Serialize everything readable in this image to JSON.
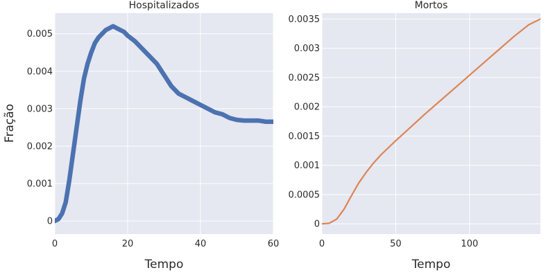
{
  "chart_data": [
    {
      "type": "line",
      "title": "Hospitalizados",
      "xlabel": "Tempo",
      "ylabel": "Fração",
      "xlim": [
        0,
        60
      ],
      "ylim": [
        -0.00035,
        0.00555
      ],
      "xticks": [
        0,
        20,
        40,
        60
      ],
      "xtick_labels": [
        "0",
        "20",
        "40",
        "60"
      ],
      "yticks": [
        0,
        0.001,
        0.002,
        0.003,
        0.004,
        0.005
      ],
      "ytick_labels": [
        "0",
        "0.001",
        "0.002",
        "0.003",
        "0.004",
        "0.005"
      ],
      "grid": true,
      "color": "#4c72b0",
      "series": [
        {
          "x": [
            0,
            1,
            2,
            3,
            4,
            5,
            6,
            7,
            8,
            9,
            10,
            11,
            12,
            13,
            14,
            15,
            16,
            17,
            18,
            19,
            20,
            22,
            24,
            26,
            28,
            30,
            32,
            34,
            36,
            38,
            40,
            42,
            44,
            46,
            48,
            50,
            52,
            54,
            56,
            58,
            60
          ],
          "y": [
            0.0,
            5e-05,
            0.0002,
            0.0005,
            0.0011,
            0.0018,
            0.0025,
            0.0032,
            0.0038,
            0.0042,
            0.0045,
            0.00475,
            0.0049,
            0.005,
            0.0051,
            0.00515,
            0.0052,
            0.00515,
            0.0051,
            0.00505,
            0.00495,
            0.0048,
            0.0046,
            0.0044,
            0.0042,
            0.0039,
            0.0036,
            0.0034,
            0.0033,
            0.0032,
            0.0031,
            0.003,
            0.0029,
            0.00285,
            0.00275,
            0.0027,
            0.00268,
            0.00268,
            0.00268,
            0.00265,
            0.00265
          ]
        }
      ]
    },
    {
      "type": "line",
      "title": "Mortos",
      "xlabel": "Tempo",
      "ylabel": "",
      "xlim": [
        0,
        148
      ],
      "ylim": [
        -0.000175,
        0.0036
      ],
      "xticks": [
        0,
        50,
        100
      ],
      "xtick_labels": [
        "0",
        "50",
        "100"
      ],
      "yticks": [
        0,
        0.0005,
        0.001,
        0.0015,
        0.002,
        0.0025,
        0.003,
        0.0035
      ],
      "ytick_labels": [
        "0",
        "0.0005",
        "0.001",
        "0.0015",
        "0.002",
        "0.0025",
        "0.003",
        "0.0035"
      ],
      "grid": true,
      "color": "#dd8452",
      "series": [
        {
          "x": [
            0,
            5,
            10,
            15,
            20,
            25,
            30,
            35,
            40,
            45,
            50,
            60,
            70,
            80,
            90,
            100,
            110,
            120,
            130,
            140,
            148
          ],
          "y": [
            0.0,
            1e-05,
            8e-05,
            0.00025,
            0.00048,
            0.0007,
            0.00088,
            0.00104,
            0.00118,
            0.0013,
            0.00142,
            0.00165,
            0.00188,
            0.0021,
            0.00232,
            0.00254,
            0.00276,
            0.00298,
            0.0032,
            0.0034,
            0.0035
          ]
        }
      ]
    }
  ]
}
